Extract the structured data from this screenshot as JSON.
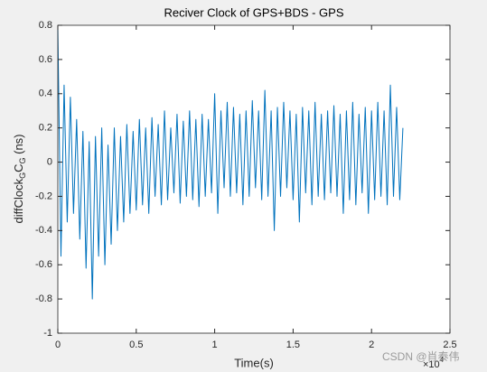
{
  "chart_data": {
    "type": "line",
    "title": "Reciver Clock of GPS+BDS - GPS",
    "xlabel": "Time(s)",
    "ylabel_parts": [
      "diffClock",
      "G",
      "C",
      "G",
      " (ns)"
    ],
    "x_exponent_base": "×10",
    "x_exponent_power": "4",
    "watermark": "CSDN @肖泰伟",
    "color": "#0072bd",
    "xlim": [
      0,
      2.5
    ],
    "xticks": [
      0,
      0.5,
      1,
      1.5,
      2,
      2.5
    ],
    "ylim": [
      -1,
      0.8
    ],
    "yticks": [
      -1,
      -0.8,
      -0.6,
      -0.4,
      -0.2,
      0,
      0.2,
      0.4,
      0.6,
      0.8
    ],
    "grid": false,
    "x": [
      0,
      0.02,
      0.04,
      0.06,
      0.08,
      0.1,
      0.12,
      0.14,
      0.16,
      0.18,
      0.2,
      0.22,
      0.24,
      0.26,
      0.28,
      0.3,
      0.32,
      0.34,
      0.36,
      0.38,
      0.4,
      0.42,
      0.44,
      0.46,
      0.48,
      0.5,
      0.52,
      0.54,
      0.56,
      0.58,
      0.6,
      0.62,
      0.64,
      0.66,
      0.68,
      0.7,
      0.72,
      0.74,
      0.76,
      0.78,
      0.8,
      0.82,
      0.84,
      0.86,
      0.88,
      0.9,
      0.92,
      0.94,
      0.96,
      0.98,
      1,
      1.02,
      1.04,
      1.06,
      1.08,
      1.1,
      1.12,
      1.14,
      1.16,
      1.18,
      1.2,
      1.22,
      1.24,
      1.26,
      1.28,
      1.3,
      1.32,
      1.34,
      1.36,
      1.38,
      1.4,
      1.42,
      1.44,
      1.46,
      1.48,
      1.5,
      1.52,
      1.54,
      1.56,
      1.58,
      1.6,
      1.62,
      1.64,
      1.66,
      1.68,
      1.7,
      1.72,
      1.74,
      1.76,
      1.78,
      1.8,
      1.82,
      1.84,
      1.86,
      1.88,
      1.9,
      1.92,
      1.94,
      1.96,
      1.98,
      2,
      2.02,
      2.04,
      2.06,
      2.08,
      2.1,
      2.12,
      2.14,
      2.16,
      2.18,
      2.2
    ],
    "values": [
      0.78,
      -0.55,
      0.45,
      -0.35,
      0.38,
      -0.3,
      0.25,
      -0.45,
      0.18,
      -0.62,
      0.12,
      -0.8,
      0.15,
      -0.55,
      0.2,
      -0.6,
      0.1,
      -0.48,
      0.2,
      -0.4,
      0.15,
      -0.35,
      0.22,
      -0.3,
      0.18,
      -0.28,
      0.25,
      -0.25,
      0.2,
      -0.3,
      0.26,
      -0.2,
      0.22,
      -0.25,
      0.3,
      -0.22,
      0.2,
      -0.18,
      0.28,
      -0.24,
      0.24,
      -0.2,
      0.3,
      -0.22,
      0.25,
      -0.26,
      0.28,
      -0.2,
      0.25,
      -0.18,
      0.4,
      -0.3,
      0.3,
      -0.15,
      0.35,
      -0.2,
      0.32,
      -0.18,
      0.28,
      -0.25,
      0.3,
      -0.2,
      0.36,
      -0.15,
      0.3,
      -0.22,
      0.42,
      -0.2,
      0.3,
      -0.4,
      0.32,
      -0.2,
      0.35,
      -0.15,
      0.3,
      -0.22,
      0.28,
      -0.35,
      0.32,
      -0.18,
      0.3,
      -0.25,
      0.35,
      -0.2,
      0.28,
      -0.22,
      0.3,
      -0.18,
      0.33,
      -0.2,
      0.28,
      -0.3,
      0.3,
      -0.22,
      0.35,
      -0.25,
      0.28,
      -0.18,
      0.32,
      -0.3,
      0.3,
      -0.22,
      0.35,
      -0.2,
      0.3,
      -0.25,
      0.45,
      -0.2,
      0.32,
      -0.22,
      0.2
    ]
  }
}
